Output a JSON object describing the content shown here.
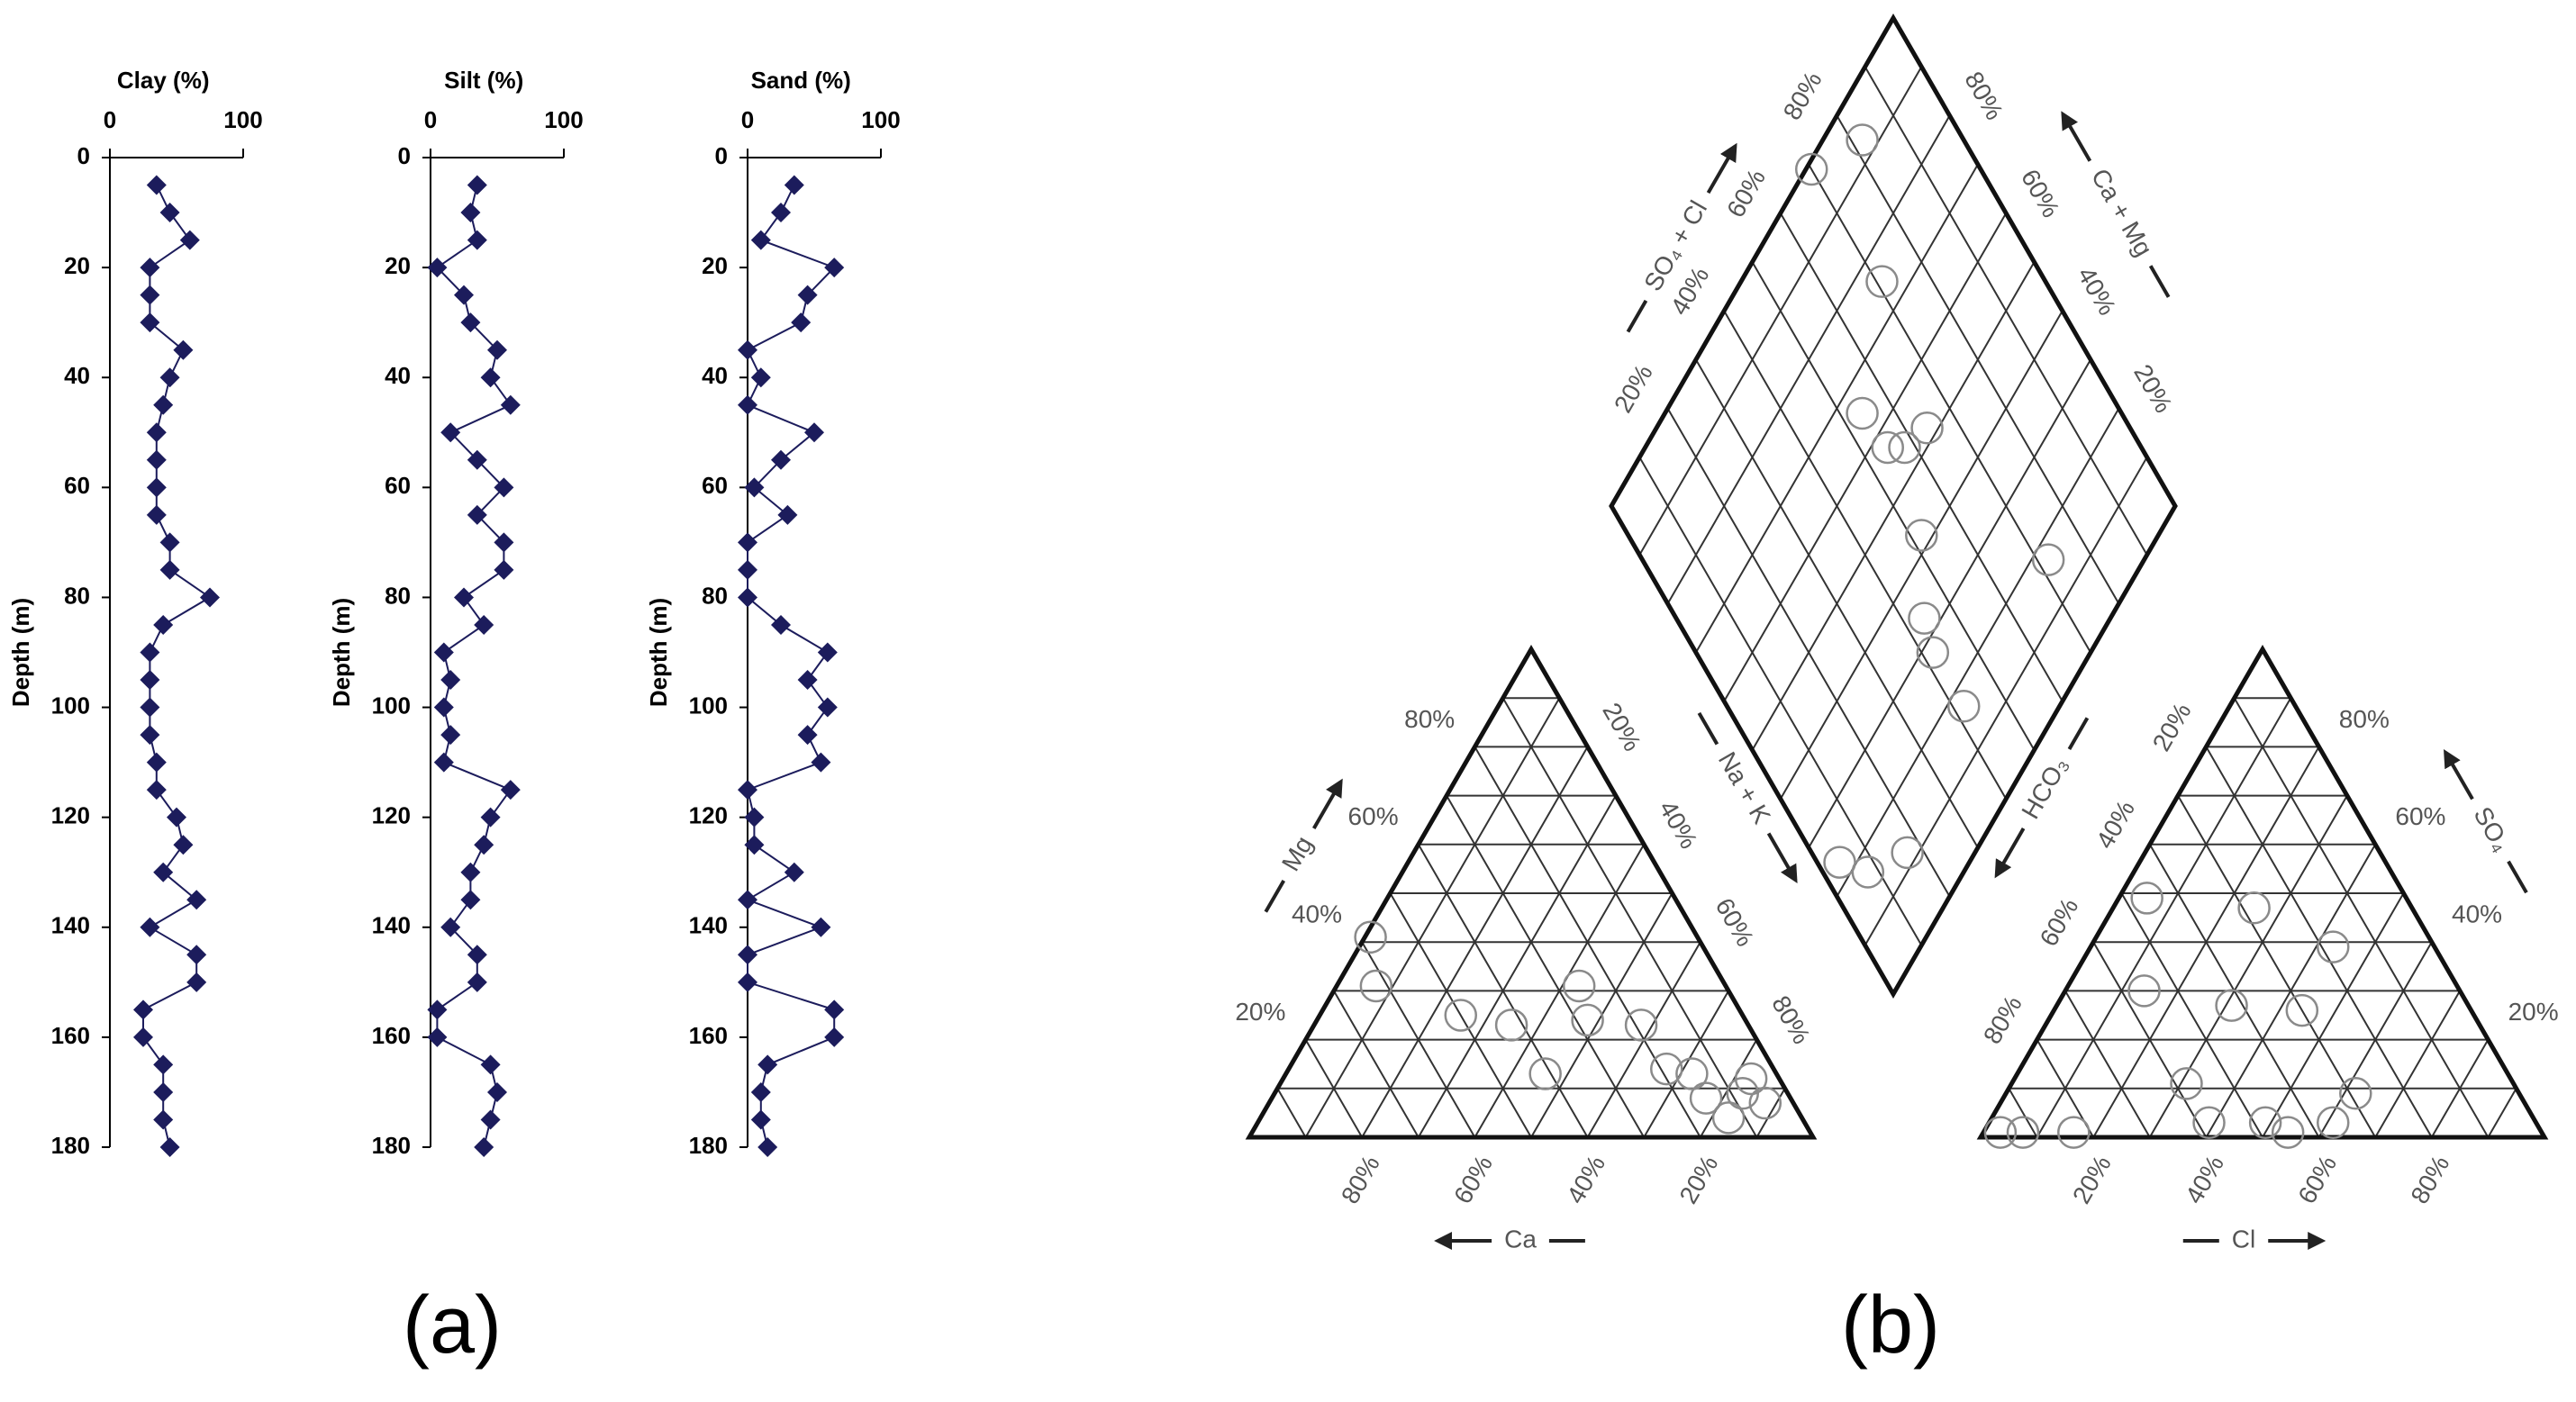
{
  "chart_data": [
    {
      "type": "line",
      "title": "Clay (%)",
      "ylabel": "Depth (m)",
      "color": "#1c1c5c",
      "y_inverted": true,
      "y": [
        5,
        10,
        15,
        20,
        25,
        30,
        35,
        40,
        45,
        50,
        55,
        60,
        65,
        70,
        75,
        80,
        85,
        90,
        95,
        100,
        105,
        110,
        115,
        120,
        125,
        130,
        135,
        140,
        145,
        150,
        155,
        160,
        165,
        170,
        175,
        180
      ],
      "values": [
        35,
        45,
        60,
        30,
        30,
        30,
        55,
        45,
        40,
        35,
        35,
        35,
        35,
        45,
        45,
        75,
        40,
        30,
        30,
        30,
        30,
        35,
        35,
        50,
        55,
        40,
        65,
        30,
        65,
        65,
        25,
        25,
        40,
        40,
        40,
        45
      ],
      "xlim": [
        0,
        100
      ],
      "xticks": [
        0,
        100
      ],
      "ylim": [
        0,
        180
      ],
      "yticks": [
        0,
        20,
        40,
        60,
        80,
        100,
        120,
        140,
        160,
        180
      ]
    },
    {
      "type": "line",
      "title": "Silt (%)",
      "ylabel": "Depth (m)",
      "color": "#1c1c5c",
      "y_inverted": true,
      "y": [
        5,
        10,
        15,
        20,
        25,
        30,
        35,
        40,
        45,
        50,
        55,
        60,
        65,
        70,
        75,
        80,
        85,
        90,
        95,
        100,
        105,
        110,
        115,
        120,
        125,
        130,
        135,
        140,
        145,
        150,
        155,
        160,
        165,
        170,
        175,
        180
      ],
      "values": [
        35,
        30,
        35,
        5,
        25,
        30,
        50,
        45,
        60,
        15,
        35,
        55,
        35,
        55,
        55,
        25,
        40,
        10,
        15,
        10,
        15,
        10,
        60,
        45,
        40,
        30,
        30,
        15,
        35,
        35,
        5,
        5,
        45,
        50,
        45,
        40
      ],
      "xlim": [
        0,
        100
      ],
      "xticks": [
        0,
        100
      ],
      "ylim": [
        0,
        180
      ],
      "yticks": [
        0,
        20,
        40,
        60,
        80,
        100,
        120,
        140,
        160,
        180
      ]
    },
    {
      "type": "line",
      "title": "Sand (%)",
      "ylabel": "Depth (m)",
      "color": "#1c1c5c",
      "y_inverted": true,
      "y": [
        5,
        10,
        15,
        20,
        25,
        30,
        35,
        40,
        45,
        50,
        55,
        60,
        65,
        70,
        75,
        80,
        85,
        90,
        95,
        100,
        105,
        110,
        115,
        120,
        125,
        130,
        135,
        140,
        145,
        150,
        155,
        160,
        165,
        170,
        175,
        180
      ],
      "values": [
        35,
        25,
        10,
        65,
        45,
        40,
        0,
        10,
        0,
        50,
        25,
        5,
        30,
        0,
        0,
        0,
        25,
        60,
        45,
        60,
        45,
        55,
        0,
        5,
        5,
        35,
        0,
        55,
        0,
        0,
        65,
        65,
        15,
        10,
        10,
        15
      ],
      "xlim": [
        0,
        100
      ],
      "xticks": [
        0,
        100
      ],
      "ylim": [
        0,
        180
      ],
      "yticks": [
        0,
        20,
        40,
        60,
        80,
        100,
        120,
        140,
        160,
        180
      ]
    },
    {
      "type": "piper",
      "marker_color": "#8a8a8a",
      "ticks": [
        {
          "value": 20,
          "label": "20%"
        },
        {
          "value": 40,
          "label": "40%"
        },
        {
          "value": 60,
          "label": "60%"
        },
        {
          "value": 80,
          "label": "80%"
        }
      ],
      "axes": {
        "ca": "Ca",
        "mg": "Mg",
        "nak": "Na + K",
        "cl": "Cl",
        "so4": "SO₄",
        "hco3": "HCO₃",
        "so4cl": "SO₄ + Cl",
        "camg": "Ca + Mg"
      },
      "samples": [
        {
          "ca": 15,
          "mg": 8,
          "cl": 3,
          "so4": 1
        },
        {
          "ca": 8,
          "mg": 9,
          "cl": 7,
          "so4": 1
        },
        {
          "ca": 5,
          "mg": 7,
          "cl": 16,
          "so4": 1
        },
        {
          "ca": 15,
          "mg": 13,
          "cl": 31,
          "so4": 11
        },
        {
          "ca": 13,
          "mg": 4,
          "cl": 39,
          "so4": 3
        },
        {
          "ca": 19,
          "mg": 23,
          "cl": 49,
          "so4": 3
        },
        {
          "ca": 26,
          "mg": 31,
          "cl": 54,
          "so4": 1
        },
        {
          "ca": 28,
          "mg": 24,
          "cl": 61,
          "so4": 3
        },
        {
          "ca": 50,
          "mg": 25,
          "cl": 62,
          "so4": 9
        },
        {
          "ca": 41,
          "mg": 13,
          "cl": 31,
          "so4": 27
        },
        {
          "ca": 58,
          "mg": 41,
          "cl": 44,
          "so4": 26
        },
        {
          "ca": 62,
          "mg": 31,
          "cl": 43,
          "so4": 39
        },
        {
          "ca": 19,
          "mg": 14,
          "cl": 14,
          "so4": 30
        },
        {
          "ca": 5,
          "mg": 12,
          "cl": 25,
          "so4": 47
        },
        {
          "ca": 42,
          "mg": 23,
          "cl": 5,
          "so4": 49
        }
      ]
    }
  ],
  "panel_labels": [
    "(a)",
    "(b)"
  ]
}
